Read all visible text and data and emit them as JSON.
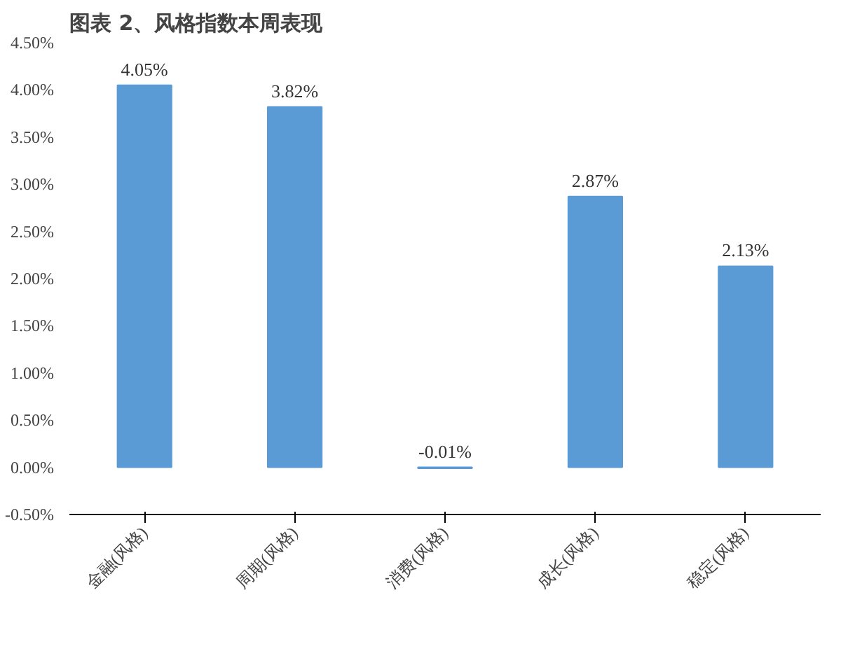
{
  "chart_data": {
    "type": "bar",
    "title": "图表 2、风格指数本周表现",
    "categories": [
      "金融(风格)",
      "周期(风格)",
      "消费(风格)",
      "成长(风格)",
      "稳定(风格)"
    ],
    "values": [
      4.05,
      3.82,
      -0.01,
      2.87,
      2.13
    ],
    "value_labels": [
      "4.05%",
      "3.82%",
      "-0.01%",
      "2.87%",
      "2.13%"
    ],
    "color": "#5b9bd5",
    "ylim": [
      -0.5,
      4.5
    ],
    "yticks": [
      {
        "value": -0.5,
        "label": "-0.50%"
      },
      {
        "value": 0,
        "label": "0.00%"
      },
      {
        "value": 0.5,
        "label": "0.50%"
      },
      {
        "value": 1,
        "label": "1.00%"
      },
      {
        "value": 1.5,
        "label": "1.50%"
      },
      {
        "value": 2,
        "label": "2.00%"
      },
      {
        "value": 2.5,
        "label": "2.50%"
      },
      {
        "value": 3,
        "label": "3.00%"
      },
      {
        "value": 3.5,
        "label": "3.50%"
      },
      {
        "value": 4,
        "label": "4.00%"
      },
      {
        "value": 4.5,
        "label": "4.50%"
      }
    ],
    "grid": false
  }
}
